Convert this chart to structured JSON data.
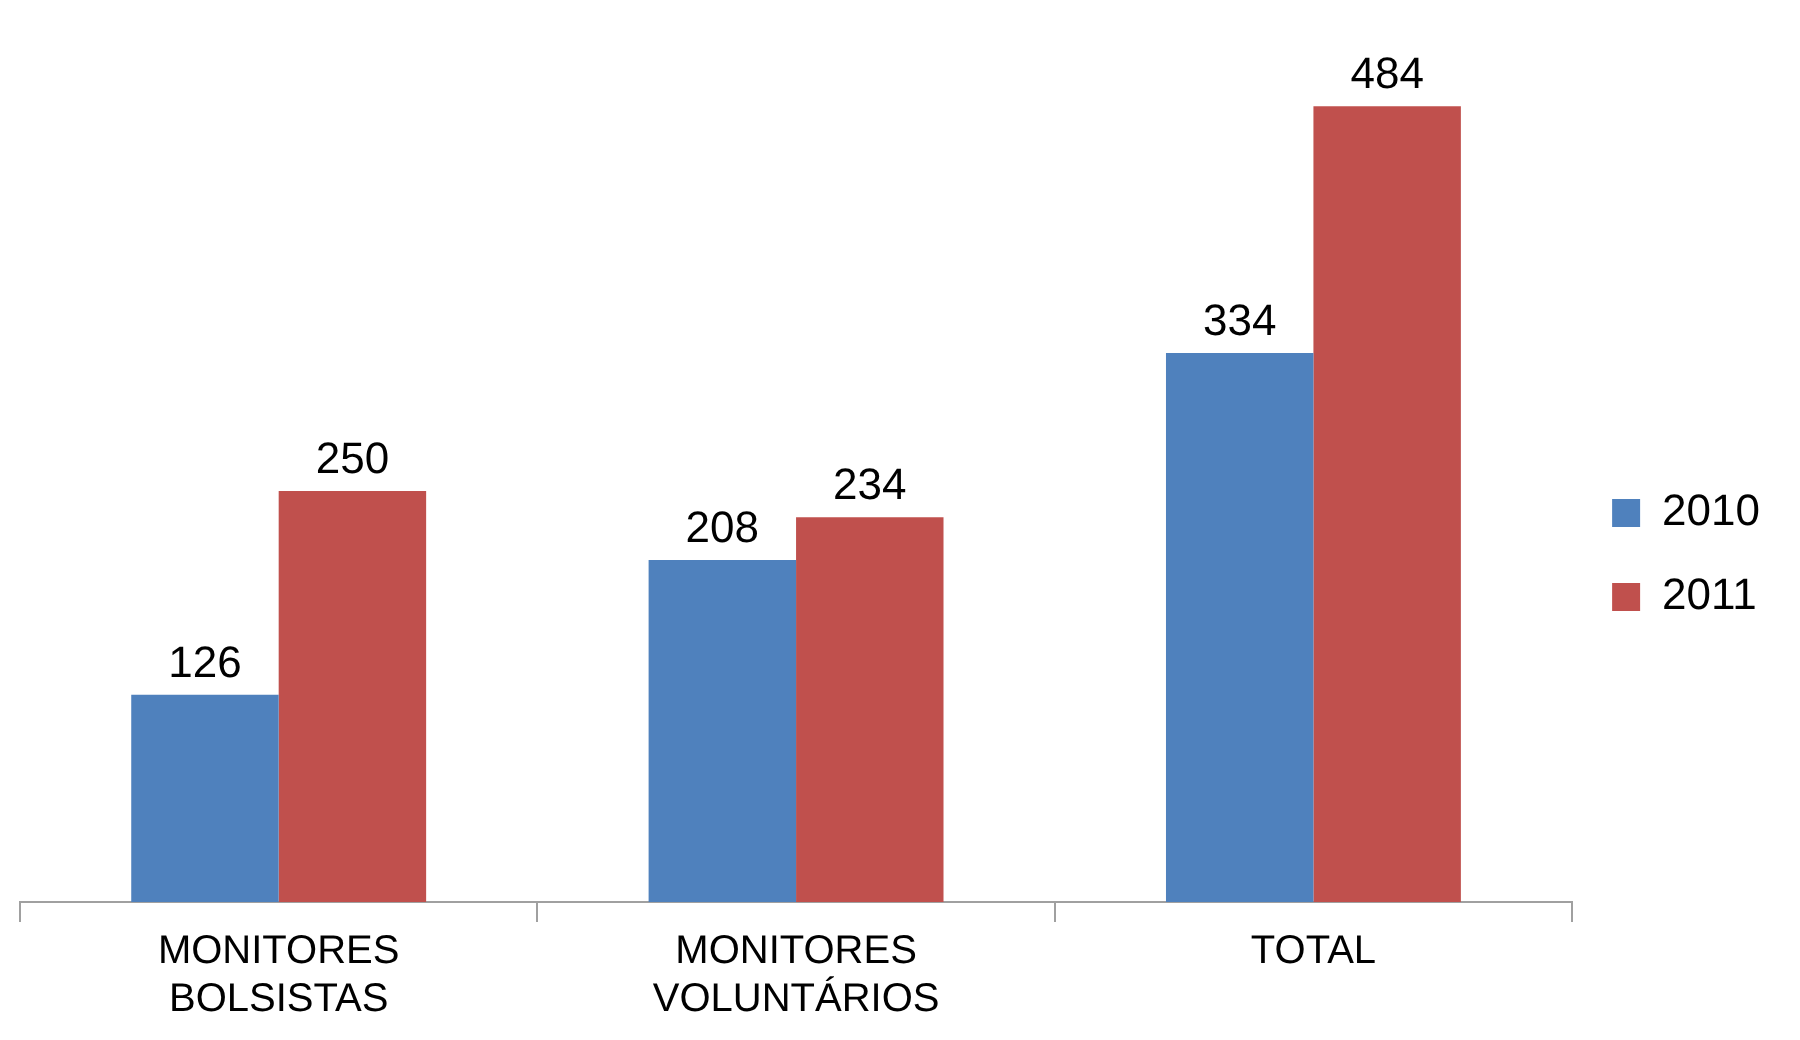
{
  "chart_data": {
    "type": "bar",
    "categories": [
      "MONITORES BOLSISTAS",
      "MONITORES VOLUNTÁRIOS",
      "TOTAL"
    ],
    "series": [
      {
        "name": "2010",
        "color": "#4f81bd",
        "values": [
          126,
          208,
          334
        ]
      },
      {
        "name": "2011",
        "color": "#c0504d",
        "values": [
          250,
          234,
          484
        ]
      }
    ],
    "data_labels": true,
    "legend": "right",
    "grid": false
  }
}
